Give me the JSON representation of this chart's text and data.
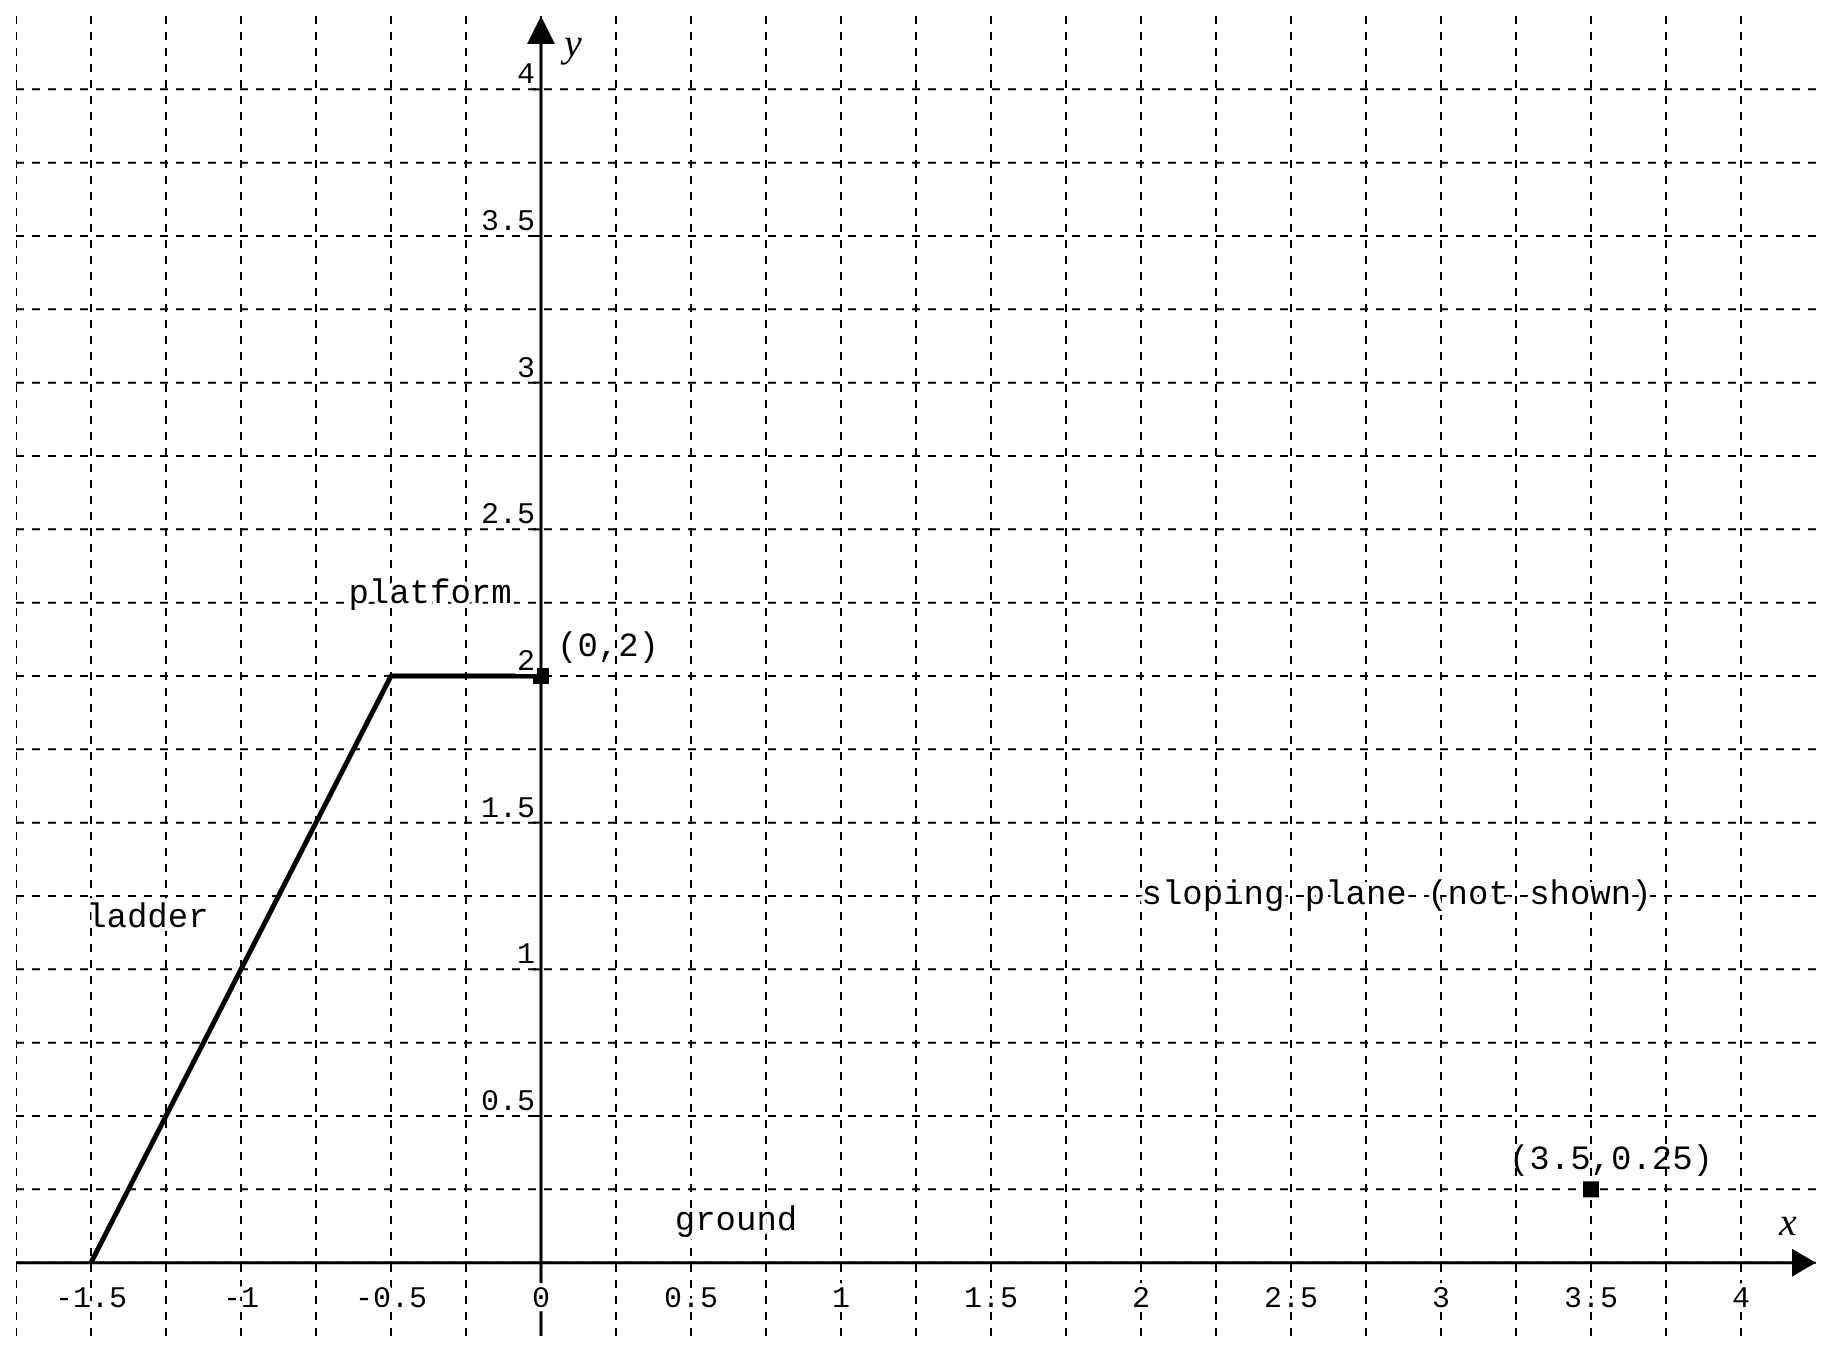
{
  "chart_data": {
    "type": "line",
    "xlabel": "x",
    "ylabel": "y",
    "xlim": [
      -1.75,
      4.25
    ],
    "ylim": [
      -0.25,
      4.25
    ],
    "xticks": [
      {
        "value": -1.75,
        "label": null
      },
      -1.5,
      {
        "value": -1.25,
        "label": null
      },
      -1,
      {
        "value": -0.75,
        "label": null
      },
      -0.5,
      {
        "value": -0.25,
        "label": null
      },
      0,
      {
        "value": 0.25,
        "label": null
      },
      0.5,
      {
        "value": 0.75,
        "label": null
      },
      1,
      {
        "value": 1.25,
        "label": null
      },
      1.5,
      {
        "value": 1.75,
        "label": null
      },
      2,
      {
        "value": 2.25,
        "label": null
      },
      2.5,
      {
        "value": 2.75,
        "label": null
      },
      3,
      {
        "value": 3.25,
        "label": null
      },
      3.5,
      {
        "value": 3.75,
        "label": null
      },
      4
    ],
    "yticks": [
      {
        "value": 0,
        "label": null
      },
      {
        "value": 0.25,
        "label": null
      },
      0.5,
      {
        "value": 0.75,
        "label": null
      },
      1,
      {
        "value": 1.25,
        "label": null
      },
      1.5,
      {
        "value": 1.75,
        "label": null
      },
      2,
      {
        "value": 2.25,
        "label": null
      },
      2.5,
      {
        "value": 2.75,
        "label": null
      },
      3,
      {
        "value": 3.25,
        "label": null
      },
      3.5,
      {
        "value": 3.75,
        "label": null
      },
      4
    ],
    "grid": true,
    "series": [
      {
        "color": "#000000",
        "x": [
          -1.5,
          -0.5,
          0
        ],
        "values": [
          0,
          2,
          2
        ],
        "marker": "none",
        "line_style": "solid"
      },
      {
        "type": "scatter",
        "color": "#000000",
        "x": [
          0,
          3.5
        ],
        "values": [
          2,
          0.25
        ],
        "marker": "square"
      }
    ],
    "annotations": [
      "ladder",
      "platform",
      {
        "text": "(0,2)",
        "x": 0,
        "y": 2
      },
      "ground",
      {
        "text": "(3.5,0.25)",
        "x": 3.5,
        "y": 0.25
      },
      "sloping plane (not shown)"
    ]
  }
}
